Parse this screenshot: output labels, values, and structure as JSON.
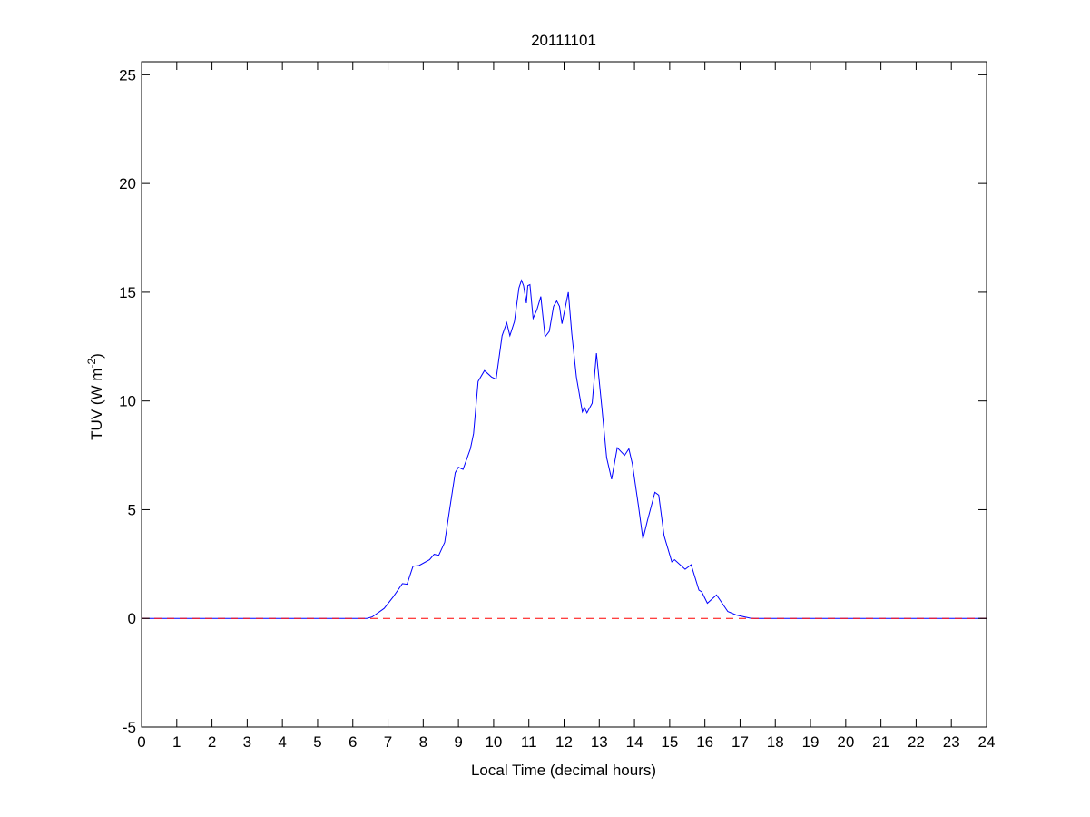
{
  "chart_data": {
    "type": "line",
    "title": "20111101",
    "xlabel": "Local Time (decimal hours)",
    "ylabel": "TUV (W m",
    "ylabel_sup": "-2",
    "ylabel_close": ")",
    "xlim": [
      0,
      24
    ],
    "ylim": [
      -5,
      25.6
    ],
    "xticks": [
      "0",
      "1",
      "2",
      "3",
      "4",
      "5",
      "6",
      "7",
      "8",
      "9",
      "10",
      "11",
      "12",
      "13",
      "14",
      "15",
      "16",
      "17",
      "18",
      "19",
      "20",
      "21",
      "22",
      "23",
      "24"
    ],
    "yticks": [
      "-5",
      "0",
      "5",
      "10",
      "15",
      "20",
      "25"
    ],
    "grid": false,
    "series": [
      {
        "color": "#0000ff",
        "style": "solid",
        "x": [
          0,
          6.4,
          6.55,
          6.89,
          7.15,
          7.41,
          7.54,
          7.71,
          7.88,
          8.18,
          8.31,
          8.44,
          8.61,
          8.74,
          8.91,
          9.0,
          9.13,
          9.34,
          9.43,
          9.56,
          9.74,
          9.94,
          10.07,
          10.24,
          10.37,
          10.46,
          10.59,
          10.72,
          10.79,
          10.85,
          10.93,
          10.97,
          11.03,
          11.12,
          11.23,
          11.34,
          11.46,
          11.58,
          11.7,
          11.79,
          11.87,
          11.94,
          12.12,
          12.22,
          12.35,
          12.52,
          12.58,
          12.65,
          12.8,
          12.92,
          13.08,
          13.21,
          13.35,
          13.51,
          13.72,
          13.84,
          13.94,
          14.11,
          14.24,
          14.37,
          14.58,
          14.69,
          14.84,
          15.06,
          15.14,
          15.44,
          15.61,
          15.83,
          15.91,
          16.07,
          16.33,
          16.65,
          16.9,
          17.29,
          17.4,
          24
        ],
        "y": [
          0,
          0,
          0.07,
          0.46,
          1.0,
          1.6,
          1.57,
          2.4,
          2.43,
          2.7,
          2.95,
          2.9,
          3.5,
          4.9,
          6.7,
          6.95,
          6.85,
          7.8,
          8.5,
          10.9,
          11.4,
          11.1,
          11.0,
          13.0,
          13.6,
          13.0,
          13.65,
          15.2,
          15.55,
          15.3,
          14.5,
          15.3,
          15.35,
          13.8,
          14.2,
          14.8,
          12.95,
          13.2,
          14.35,
          14.6,
          14.35,
          13.55,
          15.0,
          13.1,
          11.1,
          9.5,
          9.7,
          9.45,
          9.9,
          12.2,
          9.6,
          7.4,
          6.4,
          7.85,
          7.5,
          7.8,
          7.1,
          5.2,
          3.65,
          4.5,
          5.8,
          5.67,
          3.8,
          2.6,
          2.7,
          2.26,
          2.47,
          1.3,
          1.22,
          0.7,
          1.08,
          0.32,
          0.15,
          0.01,
          0,
          0
        ]
      },
      {
        "color": "#ff0000",
        "style": "dashed",
        "x": [
          0,
          24
        ],
        "y": [
          0,
          0
        ]
      }
    ]
  }
}
